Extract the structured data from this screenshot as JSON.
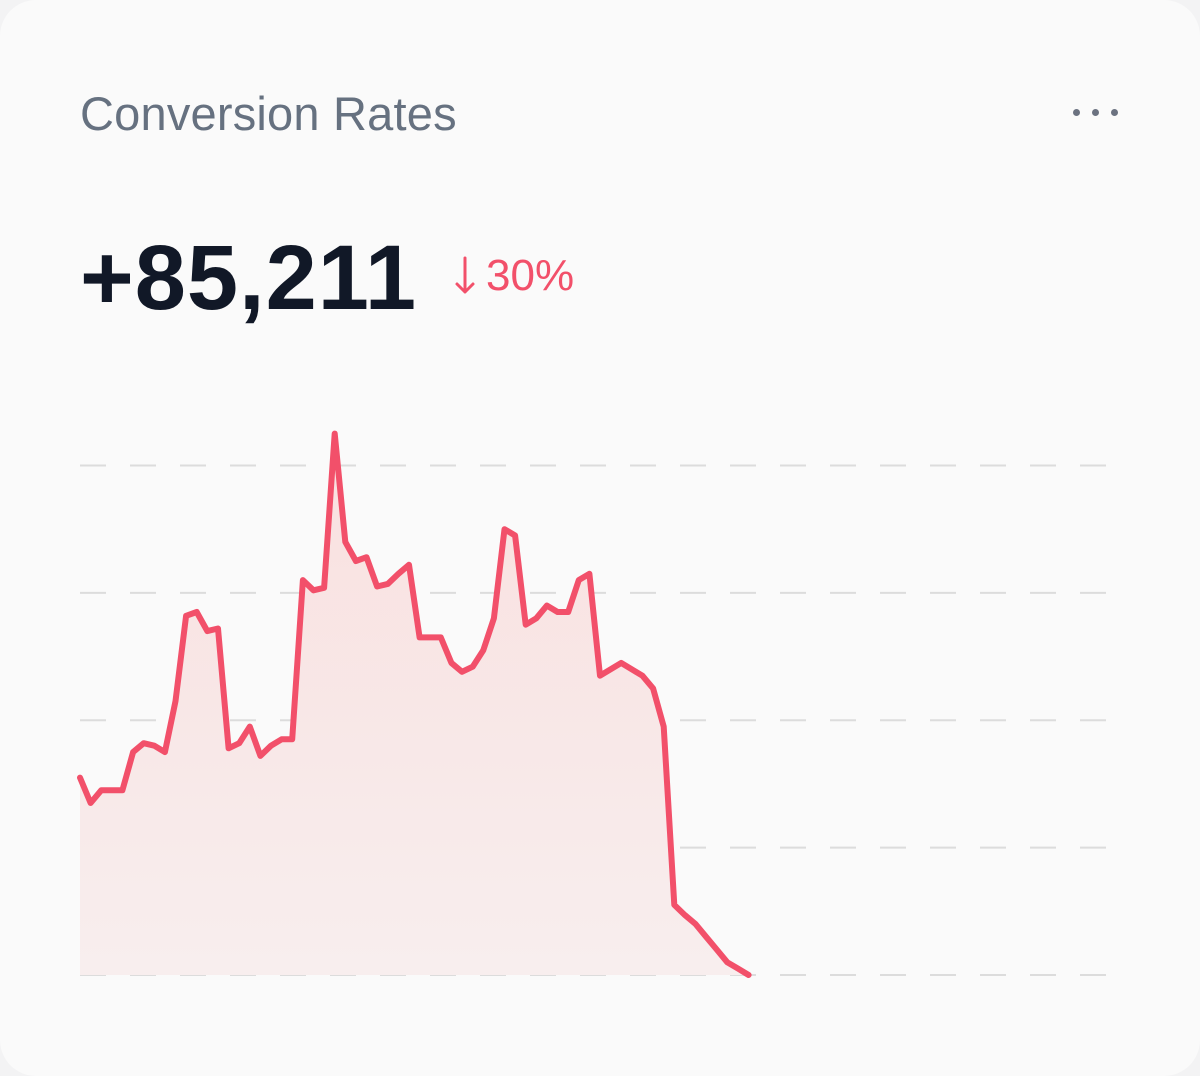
{
  "widget": {
    "title": "Conversion Rates",
    "menu_icon": "more-horizontal-icon"
  },
  "metric": {
    "value": "+85,211",
    "change_icon": "arrow-down-icon",
    "change_text": "30%",
    "change_color": "#f2506a"
  },
  "colors": {
    "line": "#f2506a",
    "area_top": "#f9e0df",
    "area_bottom": "#f8eeee",
    "grid": "#dcdcdc"
  },
  "chart_data": {
    "type": "area",
    "title": "",
    "xlabel": "",
    "ylabel": "",
    "grid": true,
    "ylim": [
      0,
      4.2
    ],
    "gridlines": [
      0,
      1,
      2,
      3,
      4
    ],
    "x": [
      0,
      1,
      2,
      3,
      4,
      5,
      6,
      7,
      8,
      9,
      10,
      11,
      12,
      13,
      14,
      15,
      16,
      17,
      18,
      19,
      20,
      21,
      22,
      23,
      24,
      25,
      26,
      27,
      28,
      29,
      30,
      31,
      32,
      33,
      34,
      35,
      36,
      37,
      38,
      39,
      40,
      41,
      42,
      43,
      44,
      45,
      46,
      47,
      48,
      49,
      50,
      51,
      52,
      53,
      54,
      55,
      56,
      57,
      58,
      59,
      60,
      61,
      62,
      63,
      64,
      65,
      66,
      67,
      68,
      69,
      70,
      71,
      72,
      73,
      74,
      75,
      76,
      77,
      78,
      79,
      80,
      81,
      82,
      83,
      84,
      85,
      86,
      87,
      88,
      89,
      90,
      91,
      92,
      93,
      94,
      95,
      96,
      97,
      98
    ],
    "series": [
      {
        "values": [
          1.55,
          1.35,
          1.45,
          1.45,
          1.45,
          1.75,
          1.82,
          1.8,
          1.75,
          2.15,
          2.82,
          2.85,
          2.7,
          2.72,
          1.78,
          1.82,
          1.95,
          1.72,
          1.8,
          1.85,
          1.85,
          3.1,
          3.02,
          3.04,
          4.25,
          3.4,
          3.25,
          3.28,
          3.05,
          3.07,
          3.15,
          3.22,
          2.65,
          2.65,
          2.65,
          2.45,
          2.38,
          2.42,
          2.55,
          2.8,
          3.5,
          3.45,
          2.75,
          2.8,
          2.9,
          2.85,
          2.85,
          3.1,
          3.15,
          2.35,
          2.4,
          2.45,
          2.4,
          2.35,
          2.25,
          1.95,
          0.55,
          0.47,
          0.4,
          0.3,
          0.2,
          0.1,
          0.05,
          0.0,
          0.0,
          0.0,
          0.0,
          0.0,
          0.0,
          0.0,
          0.0,
          0.0,
          0.0,
          0.0,
          0.0,
          0.0,
          0.0,
          0.0,
          0.0,
          0.0,
          0.0,
          0.0,
          0.0,
          0.0,
          0.0,
          0.0,
          0.0,
          0.0,
          0.0,
          0.0,
          0.0,
          0.0,
          0.0,
          0.0,
          0.0,
          0.0,
          0.0,
          0.0,
          0.0
        ]
      }
    ]
  }
}
